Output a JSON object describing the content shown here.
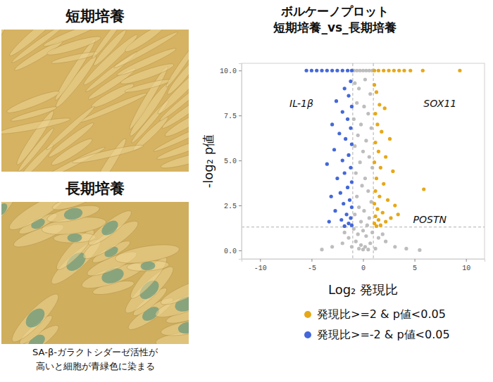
{
  "panels": [
    {
      "title": "短期培養"
    },
    {
      "title": "長期培養"
    }
  ],
  "caption": [
    "SA-β-ガラクトシダーゼ活性が",
    "高いと細胞が青緑色に染まる"
  ],
  "chart_data": {
    "type": "scatter",
    "title": "ボルケーノプロット",
    "subtitle": "短期培養_vs_長期培養",
    "x_label": "Log₂ 発現比",
    "y_label": "-log₂ p値",
    "xlim": [
      -11.8,
      11.8
    ],
    "ylim": [
      -0.47,
      10.4
    ],
    "xticks": [
      -10,
      -5,
      0,
      5,
      10
    ],
    "yticks": [
      {
        "value": 0,
        "label": "0.0"
      },
      {
        "value": 2.5,
        "label": "2.5"
      },
      {
        "value": 5,
        "label": "5.0"
      },
      {
        "value": 7.5,
        "label": "7.5"
      },
      {
        "value": 10,
        "label": "10.0"
      }
    ],
    "marker": "circle",
    "legend": "bottom",
    "grid": false,
    "thresholds_x": [
      -1,
      1
    ],
    "threshold_y": 1.3,
    "series": [
      {
        "color": "#bdbdbd",
        "x": [
          -0.9,
          -0.6,
          -0.3,
          0,
          0.3,
          0.6,
          0.9,
          -0.8,
          -0.4,
          0.2,
          0.7,
          -0.6,
          0.1,
          0.5,
          -0.9,
          -0.2,
          0.8,
          -0.5,
          0.3,
          -0.8,
          0.0,
          0.6,
          -0.3,
          0.9,
          -0.7,
          0.2,
          -0.1,
          0.5,
          -0.6,
          0.8,
          -0.4,
          0.1,
          -0.8,
          0.6,
          -0.2,
          0.4,
          -0.9,
          0.0,
          0.9,
          -0.5,
          0.3,
          -1.4,
          1.5,
          -2.0,
          2.2,
          -0.7,
          0.7,
          -3.0,
          3.1,
          -0.2,
          0.2,
          -1.1,
          1.2,
          -4.0,
          4.2,
          5.5,
          0,
          -0.4,
          0.5,
          -1.8,
          1.9
        ],
        "values": [
          10,
          10,
          10,
          10,
          10,
          10,
          10,
          9.3,
          9.0,
          9.5,
          8.7,
          8.2,
          8.0,
          7.6,
          7.3,
          7.0,
          6.8,
          6.4,
          6.1,
          5.8,
          5.5,
          5.2,
          4.9,
          4.6,
          4.3,
          4.0,
          3.6,
          3.3,
          3.0,
          2.7,
          2.4,
          2.2,
          2.0,
          1.8,
          1.6,
          1.4,
          1.2,
          1.1,
          1.0,
          0.9,
          0.8,
          0.7,
          0.7,
          0.4,
          0.5,
          0.5,
          0.4,
          0.2,
          0.2,
          0.3,
          0.2,
          0.2,
          0.1,
          0.05,
          0.1,
          0.02,
          0.05,
          0.1,
          0.05,
          1.0,
          0.9
        ]
      },
      {
        "name": "発現比>=2 & p値<0.05",
        "color": "#e6a817",
        "x": [
          1.1,
          1.5,
          2.0,
          2.5,
          3.0,
          3.5,
          4.0,
          4.6,
          5.8,
          9.4,
          1.1,
          1.3,
          1.6,
          1.2,
          2.1,
          1.4,
          1.8,
          2.6,
          1.2,
          1.5,
          2.2,
          1.1,
          1.7,
          2.9,
          1.3,
          2.0,
          1.2,
          1.6,
          2.4,
          5.9,
          1.1,
          1.4,
          1.9,
          3.1,
          1.2,
          1.5,
          2.2,
          1.1,
          1.7,
          2.7,
          3.4,
          1.3
        ],
        "values": [
          10,
          10,
          10,
          10,
          10,
          10,
          10,
          10,
          10,
          10,
          9.2,
          8.8,
          8.1,
          7.6,
          7.9,
          7.0,
          6.6,
          6.2,
          6.0,
          5.5,
          5.2,
          4.9,
          4.6,
          4.4,
          4.0,
          3.7,
          3.3,
          3.0,
          2.8,
          3.4,
          2.6,
          2.3,
          2.1,
          2.5,
          1.9,
          1.7,
          1.6,
          1.5,
          1.4,
          1.8,
          2.0,
          1.35
        ]
      },
      {
        "name": "発現比>=-2 & p値<0.05",
        "color": "#4468d8",
        "x": [
          -5.5,
          -5.0,
          -4.5,
          -4.0,
          -3.5,
          -3.0,
          -2.5,
          -2.0,
          -1.5,
          -1.1,
          -1.2,
          -1.8,
          -1.4,
          -2.6,
          -1.1,
          -2.0,
          -1.5,
          -3.0,
          -1.2,
          -2.3,
          -1.7,
          -1.1,
          -2.8,
          -1.4,
          -2.0,
          -3.5,
          -1.2,
          -1.8,
          -2.5,
          -1.1,
          -1.5,
          -2.2,
          -3.1,
          -1.3,
          -1.9,
          -1.1,
          -2.7,
          -1.6,
          -1.2,
          -2.1,
          -1.4,
          -3.3,
          -1.1,
          -1.8
        ],
        "values": [
          10,
          10,
          10,
          10,
          10,
          10,
          10,
          10,
          10,
          10,
          9.4,
          9.0,
          8.6,
          8.3,
          8.0,
          7.7,
          7.3,
          7.0,
          6.8,
          6.5,
          6.2,
          5.9,
          5.6,
          5.3,
          5.0,
          4.8,
          4.6,
          4.3,
          4.0,
          3.8,
          3.5,
          3.2,
          3.0,
          2.8,
          2.6,
          2.4,
          2.2,
          2.0,
          1.8,
          1.7,
          1.5,
          1.6,
          1.4,
          1.35
        ]
      }
    ],
    "annotations": [
      {
        "text": "IL-1β",
        "x": -4.6,
        "y": 10
      },
      {
        "text": "SOX11",
        "x": 9.4,
        "y": 10
      },
      {
        "text": "POSTN",
        "x": 5.5,
        "y": 0.02
      }
    ]
  }
}
